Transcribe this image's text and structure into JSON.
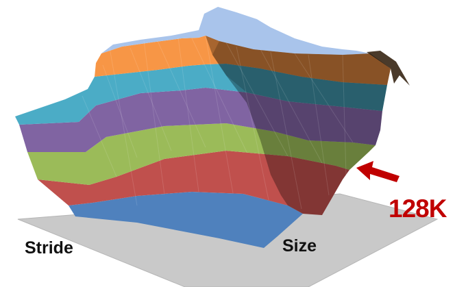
{
  "chart_data": {
    "type": "surface",
    "title": "",
    "x_axis_label": "Stride",
    "y_axis_label": "Size",
    "band_colors": [
      "#4f81bd",
      "#c0504d",
      "#9bbb59",
      "#8064a2",
      "#4bacc6",
      "#f79646",
      "#a9c4eb"
    ],
    "annotation": {
      "text": "128K",
      "color": "#c00000",
      "target": "edge of the third (green) band on the Size axis"
    }
  }
}
